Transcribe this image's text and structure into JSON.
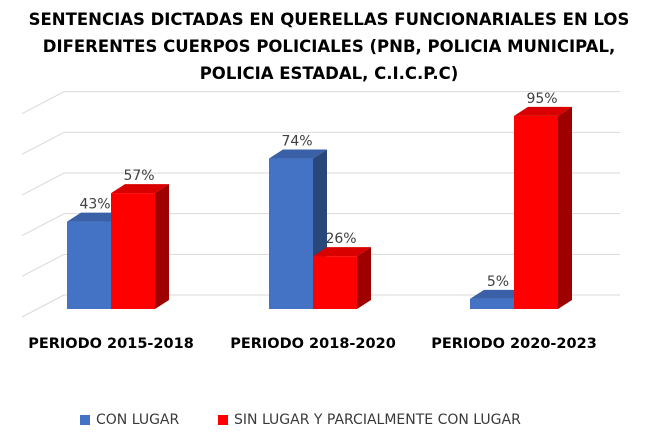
{
  "chart_data": {
    "type": "bar",
    "title_lines": [
      "SENTENCIAS DICTADAS EN QUERELLAS FUNCIONARIALES EN LOS",
      "DIFERENTES CUERPOS POLICIALES (PNB, POLICIA MUNICIPAL,",
      "POLICIA ESTADAL, C.I.C.P.C)"
    ],
    "categories": [
      "PERIODO 2015-2018",
      "PERIODO 2018-2020",
      "PERIODO 2020-2023"
    ],
    "series": [
      {
        "name": "CON LUGAR",
        "values": [
          43,
          74,
          5
        ],
        "color": "#4472c4"
      },
      {
        "name": "SIN LUGAR Y PARCIALMENTE CON LUGAR",
        "values": [
          57,
          26,
          95
        ],
        "color": "#ff0000"
      }
    ],
    "value_suffix": "%",
    "ylim": [
      0,
      100
    ],
    "grid": true,
    "three_d": true,
    "legend_position": "bottom"
  }
}
